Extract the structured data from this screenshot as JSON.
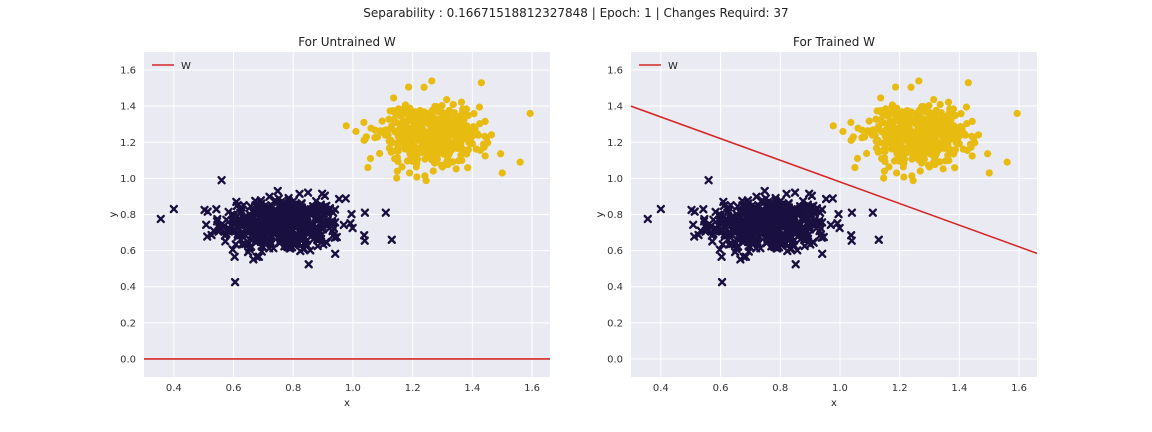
{
  "figure": {
    "suptitle": "Separability : 0.16671518812327848  |  Epoch: 1  |  Changes Requird: 37",
    "colors": {
      "axes_bg": "#eaeaf2",
      "grid": "#ffffff",
      "line": "#d62728",
      "class_neg": "#1a1040",
      "class_pos": "#e8bb10"
    }
  },
  "chart_data": [
    {
      "type": "scatter",
      "title": "For Untrained W",
      "xlabel": "x",
      "ylabel": "y",
      "xlim": [
        0.3,
        1.66
      ],
      "ylim": [
        -0.1,
        1.7
      ],
      "xticks": [
        "0.4",
        "0.6",
        "0.8",
        "1.0",
        "1.2",
        "1.4",
        "1.6"
      ],
      "yticks": [
        "0.0",
        "0.2",
        "0.4",
        "0.6",
        "0.8",
        "1.0",
        "1.2",
        "1.4",
        "1.6"
      ],
      "grid": true,
      "legend": {
        "position": "top-left",
        "entries": [
          "W"
        ]
      },
      "lines": [
        {
          "name": "W",
          "points": [
            [
              0.3,
              0.0
            ],
            [
              1.66,
              0.0
            ]
          ]
        }
      ],
      "clusters": [
        {
          "marker": "x",
          "center": [
            0.76,
            0.74
          ],
          "spread": [
            0.1,
            0.075
          ],
          "count": 500,
          "outliers": [
            [
              0.4,
              0.83
            ],
            [
              0.56,
              0.99
            ],
            [
              1.04,
              0.81
            ],
            [
              1.11,
              0.81
            ],
            [
              1.13,
              0.66
            ]
          ]
        },
        {
          "marker": "o",
          "center": [
            1.25,
            1.24
          ],
          "spread": [
            0.085,
            0.085
          ],
          "count": 500,
          "outliers": [
            [
              1.01,
              1.26
            ],
            [
              1.56,
              1.09
            ],
            [
              1.5,
              1.03
            ],
            [
              1.05,
              1.06
            ],
            [
              1.43,
              1.53
            ]
          ]
        }
      ]
    },
    {
      "type": "scatter",
      "title": "For Trained W",
      "xlabel": "x",
      "ylabel": "y",
      "xlim": [
        0.3,
        1.66
      ],
      "ylim": [
        -0.1,
        1.7
      ],
      "xticks": [
        "0.4",
        "0.6",
        "0.8",
        "1.0",
        "1.2",
        "1.4",
        "1.6"
      ],
      "yticks": [
        "0.0",
        "0.2",
        "0.4",
        "0.6",
        "0.8",
        "1.0",
        "1.2",
        "1.4",
        "1.6"
      ],
      "grid": true,
      "legend": {
        "position": "top-left",
        "entries": [
          "W"
        ]
      },
      "lines": [
        {
          "name": "W",
          "points": [
            [
              0.3,
              1.4
            ],
            [
              1.66,
              0.585
            ]
          ]
        }
      ],
      "clusters": [
        {
          "marker": "x",
          "center": [
            0.76,
            0.74
          ],
          "spread": [
            0.1,
            0.075
          ],
          "count": 500,
          "outliers": [
            [
              0.4,
              0.83
            ],
            [
              0.56,
              0.99
            ],
            [
              1.04,
              0.81
            ],
            [
              1.11,
              0.81
            ],
            [
              1.13,
              0.66
            ]
          ]
        },
        {
          "marker": "o",
          "center": [
            1.25,
            1.24
          ],
          "spread": [
            0.085,
            0.085
          ],
          "count": 500,
          "outliers": [
            [
              1.01,
              1.26
            ],
            [
              1.56,
              1.09
            ],
            [
              1.5,
              1.03
            ],
            [
              1.05,
              1.06
            ],
            [
              1.43,
              1.53
            ]
          ]
        }
      ]
    }
  ]
}
